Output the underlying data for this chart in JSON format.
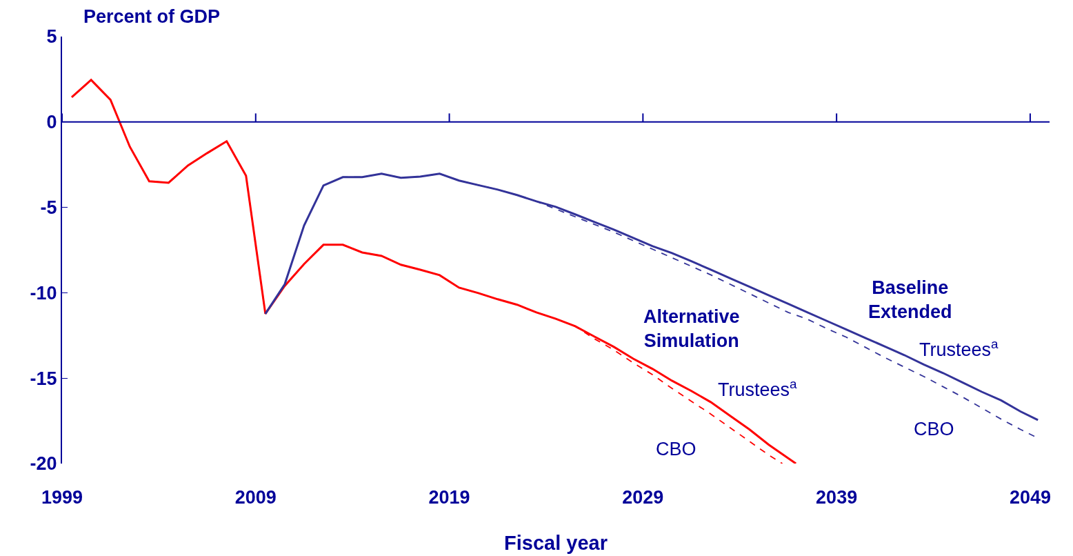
{
  "chart_data": {
    "type": "line",
    "ylabel": "Percent of GDP",
    "xlabel": "Fiscal year",
    "xlim": [
      1999,
      2050
    ],
    "xticks": [
      1999,
      2009,
      2019,
      2029,
      2039,
      2049
    ],
    "ylim": [
      -20,
      5
    ],
    "yticks": [
      5,
      0,
      -5,
      -10,
      -15,
      -20
    ],
    "marker": "none",
    "series": [
      {
        "color": "#ff0000",
        "line_style": "dashed",
        "x": [
          1999.5,
          2000.5,
          2001.5,
          2002.5,
          2003.5,
          2004.5,
          2005.5,
          2006.5,
          2007.5,
          2008.5,
          2009.5,
          2010.5,
          2011.5,
          2012.5,
          2013.5,
          2014.5,
          2015.5,
          2016.5,
          2017.5,
          2018.5,
          2019.5,
          2020.5,
          2021.5,
          2022.5,
          2023.5,
          2024.5,
          2025.5,
          2026.5,
          2027.5,
          2028.5,
          2029.5,
          2030.5,
          2031.5,
          2032.5,
          2033.5,
          2034.5,
          2035.5,
          2036.2
        ],
        "values": [
          1.45,
          2.46,
          1.3,
          -1.45,
          -3.47,
          -3.56,
          -2.55,
          -1.82,
          -1.13,
          -3.15,
          -11.23,
          -9.6,
          -8.32,
          -7.19,
          -7.19,
          -7.64,
          -7.84,
          -8.36,
          -8.65,
          -8.97,
          -9.7,
          -10.02,
          -10.38,
          -10.7,
          -11.15,
          -11.52,
          -11.96,
          -12.7,
          -13.35,
          -14.1,
          -14.8,
          -15.6,
          -16.35,
          -17.1,
          -17.9,
          -18.7,
          -19.5,
          -20
        ]
      },
      {
        "color": "#ff0000",
        "line_style": "solid",
        "x": [
          1999.5,
          2000.5,
          2001.5,
          2002.5,
          2003.5,
          2004.5,
          2005.5,
          2006.5,
          2007.5,
          2008.5,
          2009.5,
          2010.5,
          2011.5,
          2012.5,
          2013.5,
          2014.5,
          2015.5,
          2016.5,
          2017.5,
          2018.5,
          2019.5,
          2020.5,
          2021.5,
          2022.5,
          2023.5,
          2024.5,
          2025.5,
          2026.5,
          2027.5,
          2028.5,
          2029.5,
          2030.5,
          2031.5,
          2032.5,
          2033.5,
          2034.5,
          2035.5,
          2036.9
        ],
        "values": [
          1.45,
          2.46,
          1.3,
          -1.45,
          -3.47,
          -3.56,
          -2.55,
          -1.82,
          -1.13,
          -3.15,
          -11.23,
          -9.6,
          -8.32,
          -7.19,
          -7.19,
          -7.64,
          -7.84,
          -8.36,
          -8.65,
          -8.97,
          -9.7,
          -10.02,
          -10.38,
          -10.7,
          -11.15,
          -11.52,
          -11.96,
          -12.57,
          -13.17,
          -13.86,
          -14.46,
          -15.15,
          -15.75,
          -16.4,
          -17.2,
          -18.0,
          -18.9,
          -20
        ]
      },
      {
        "color": "#333399",
        "line_style": "dashed",
        "x": [
          2009.5,
          2010.5,
          2011.5,
          2012.5,
          2013.5,
          2014.5,
          2015.5,
          2016.5,
          2017.5,
          2018.5,
          2019.5,
          2020.5,
          2021.5,
          2022.5,
          2023.5,
          2024.5,
          2025.5,
          2026.5,
          2027.5,
          2028.5,
          2029.5,
          2030.5,
          2031.5,
          2032.5,
          2033.5,
          2034.5,
          2035.5,
          2036.5,
          2037.5,
          2038.5,
          2039.5,
          2040.5,
          2041.5,
          2042.5,
          2043.5,
          2044.5,
          2045.5,
          2046.5,
          2047.5,
          2048.5,
          2049.3
        ],
        "values": [
          -11.23,
          -9.5,
          -6.06,
          -3.72,
          -3.23,
          -3.23,
          -3.03,
          -3.27,
          -3.2,
          -3.03,
          -3.43,
          -3.7,
          -3.96,
          -4.28,
          -4.65,
          -5.1,
          -5.55,
          -6.0,
          -6.45,
          -6.95,
          -7.45,
          -7.95,
          -8.45,
          -8.95,
          -9.5,
          -10.05,
          -10.6,
          -11.15,
          -11.55,
          -12.1,
          -12.6,
          -13.2,
          -13.8,
          -14.35,
          -14.9,
          -15.5,
          -16.1,
          -16.75,
          -17.4,
          -18.0,
          -18.45
        ]
      },
      {
        "color": "#333399",
        "line_style": "solid",
        "x": [
          2009.5,
          2010.5,
          2011.5,
          2012.5,
          2013.5,
          2014.5,
          2015.5,
          2016.5,
          2017.5,
          2018.5,
          2019.5,
          2020.5,
          2021.5,
          2022.5,
          2023.5,
          2024.5,
          2025.5,
          2026.5,
          2027.5,
          2028.5,
          2029.5,
          2030.5,
          2031.5,
          2032.5,
          2033.5,
          2034.5,
          2035.5,
          2036.5,
          2037.5,
          2038.5,
          2039.5,
          2040.5,
          2041.5,
          2042.5,
          2043.5,
          2044.5,
          2045.5,
          2046.5,
          2047.5,
          2048.5,
          2049.4
        ],
        "values": [
          -11.23,
          -9.5,
          -6.06,
          -3.72,
          -3.23,
          -3.23,
          -3.03,
          -3.27,
          -3.2,
          -3.03,
          -3.43,
          -3.7,
          -3.96,
          -4.28,
          -4.65,
          -4.97,
          -5.41,
          -5.86,
          -6.3,
          -6.79,
          -7.27,
          -7.68,
          -8.15,
          -8.65,
          -9.15,
          -9.65,
          -10.15,
          -10.65,
          -11.15,
          -11.65,
          -12.15,
          -12.65,
          -13.15,
          -13.65,
          -14.2,
          -14.7,
          -15.25,
          -15.8,
          -16.3,
          -16.95,
          -17.45
        ]
      }
    ],
    "ref_lines": [
      {
        "axis": "y",
        "value": 0,
        "color": "#000099"
      }
    ],
    "annotations": [
      "Alternative\nSimulation",
      "Trustees$^{a}$",
      "CBO",
      "Baseline\nExtended",
      "Trustees$^{a}$",
      "CBO"
    ]
  }
}
